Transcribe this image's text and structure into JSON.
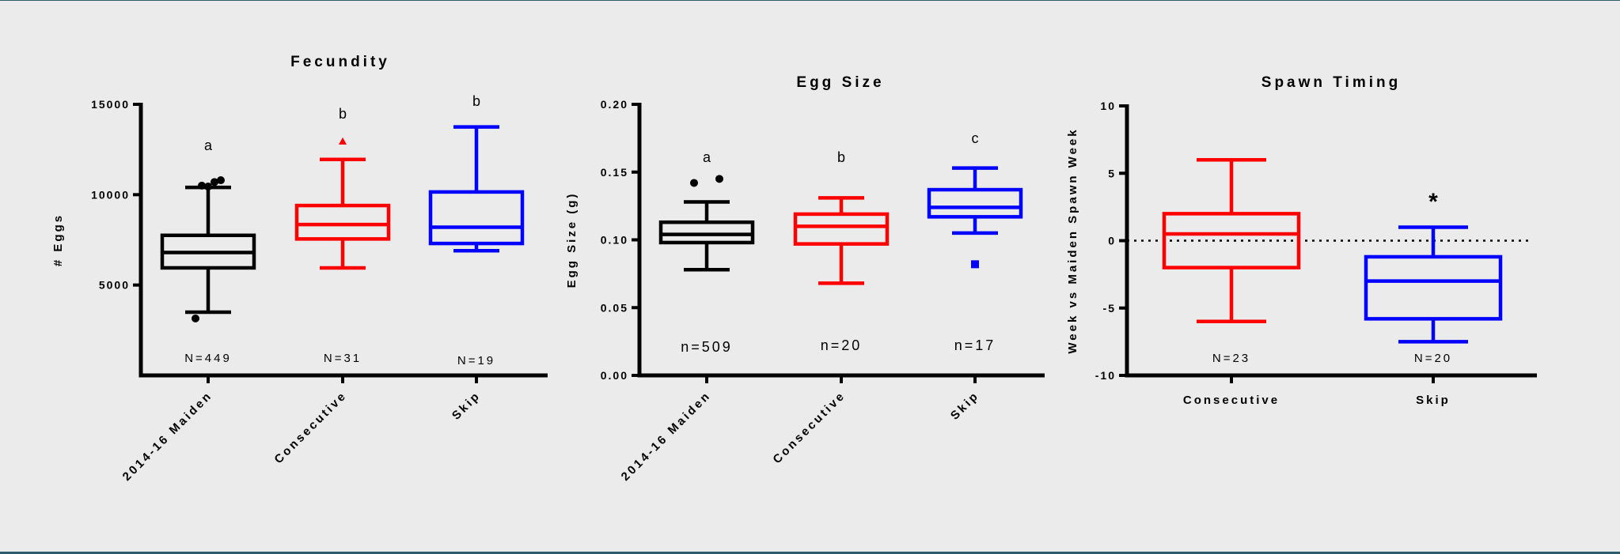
{
  "chart_data": [
    {
      "type": "box",
      "title": "Fecundity",
      "ylabel": "# Eggs",
      "xlabel": "",
      "ylim": [
        0,
        15000
      ],
      "yticks": [
        5000,
        10000,
        15000
      ],
      "ytick_labels": [
        "5000",
        "10000",
        "15000"
      ],
      "grid": false,
      "categories": [
        "2014-16 Maiden",
        "Consecutive",
        "Skip"
      ],
      "colors": [
        "#000000",
        "#ff0000",
        "#0000ff"
      ],
      "boxes": [
        {
          "category": "2014-16 Maiden",
          "whisker_low": 3500,
          "q1": 5950,
          "median": 6800,
          "q3": 7750,
          "whisker_high": 10400,
          "outliers": [
            3150,
            10500,
            10450,
            10700,
            10800
          ],
          "letter": "a",
          "n_label": "N=449"
        },
        {
          "category": "Consecutive",
          "whisker_low": 5950,
          "q1": 7550,
          "median": 8350,
          "q3": 9400,
          "whisker_high": 11950,
          "outliers": [
            12950
          ],
          "letter": "b",
          "n_label": "N=31"
        },
        {
          "category": "Skip",
          "whisker_low": 6900,
          "q1": 7300,
          "median": 8200,
          "q3": 10150,
          "whisker_high": 13750,
          "outliers": [],
          "letter": "b",
          "n_label": "N=19"
        }
      ]
    },
    {
      "type": "box",
      "title": "Egg Size",
      "ylabel": "Egg Size (g)",
      "xlabel": "",
      "ylim": [
        0,
        0.2
      ],
      "yticks": [
        0,
        0.05,
        0.1,
        0.15,
        0.2
      ],
      "ytick_labels": [
        "0.00",
        "0.05",
        "0.10",
        "0.15",
        "0.20"
      ],
      "grid": false,
      "categories": [
        "2014-16 Maiden",
        "Consecutive",
        "Skip"
      ],
      "colors": [
        "#000000",
        "#ff0000",
        "#0000ff"
      ],
      "boxes": [
        {
          "category": "2014-16 Maiden",
          "whisker_low": 0.078,
          "q1": 0.098,
          "median": 0.104,
          "q3": 0.113,
          "whisker_high": 0.128,
          "outliers": [
            0.142,
            0.145
          ],
          "letter": "a",
          "n_label": "n=509"
        },
        {
          "category": "Consecutive",
          "whisker_low": 0.068,
          "q1": 0.097,
          "median": 0.11,
          "q3": 0.119,
          "whisker_high": 0.131,
          "outliers": [],
          "letter": "b",
          "n_label": "n=20"
        },
        {
          "category": "Skip",
          "whisker_low": 0.105,
          "q1": 0.117,
          "median": 0.124,
          "q3": 0.137,
          "whisker_high": 0.153,
          "outliers": [
            0.082
          ],
          "letter": "c",
          "n_label": "n=17"
        }
      ]
    },
    {
      "type": "box",
      "title": "Spawn Timing",
      "ylabel": "Week vs Maiden Spawn Week",
      "xlabel": "",
      "ylim": [
        -10,
        10
      ],
      "yticks": [
        -10,
        -5,
        0,
        5,
        10
      ],
      "ytick_labels": [
        "-10",
        "-5",
        "0",
        "5",
        "10"
      ],
      "grid": false,
      "reference_line": 0,
      "categories": [
        "Consecutive",
        "Skip"
      ],
      "colors": [
        "#ff0000",
        "#0000ff"
      ],
      "boxes": [
        {
          "category": "Consecutive",
          "whisker_low": -6,
          "q1": -2,
          "median": 0.5,
          "q3": 2,
          "whisker_high": 6,
          "outliers": [],
          "letter": "",
          "n_label": "N=23"
        },
        {
          "category": "Skip",
          "whisker_low": -7.5,
          "q1": -5.8,
          "median": -3,
          "q3": -1.2,
          "whisker_high": 1,
          "outliers": [],
          "letter": "*",
          "n_label": "N=20"
        }
      ]
    }
  ]
}
